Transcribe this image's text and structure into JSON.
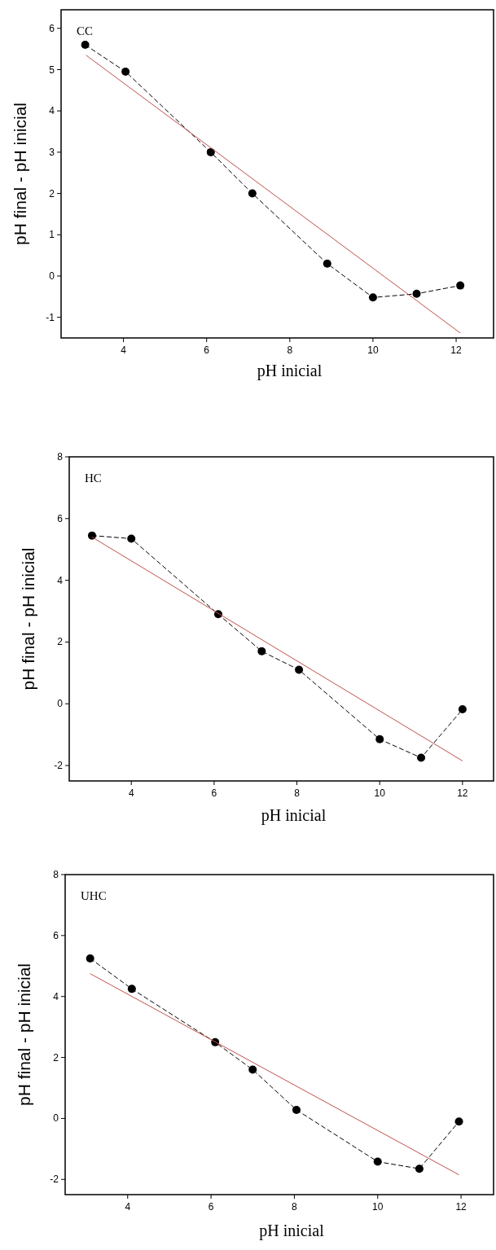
{
  "chart_data": [
    {
      "type": "line",
      "xlabel": "pH inicial",
      "ylabel": "pH final - pH inicial",
      "annotations": [
        "CC"
      ],
      "xlim": [
        2.5,
        12.9
      ],
      "xticks": [
        4,
        6,
        8,
        10,
        12
      ],
      "ylim": [
        -1.5,
        6.45
      ],
      "yticks": [
        -1,
        0,
        1,
        2,
        3,
        4,
        5,
        6
      ],
      "grid": false,
      "series": [
        {
          "color": "#000000",
          "marker": "circle",
          "line_style": "dashed",
          "x": [
            3.08,
            4.05,
            6.1,
            7.1,
            8.9,
            10.0,
            11.05,
            12.1
          ],
          "values": [
            5.6,
            4.95,
            3.0,
            2.0,
            0.3,
            -0.52,
            -0.43,
            -0.23
          ]
        },
        {
          "color": "#c0504d",
          "marker": "none",
          "line_style": "solid",
          "x": [
            3.1,
            12.1
          ],
          "values": [
            5.35,
            -1.38
          ]
        }
      ]
    },
    {
      "type": "line",
      "xlabel": "pH inicial",
      "ylabel": "pH final - pH inicial",
      "annotations": [
        "HC"
      ],
      "xlim": [
        2.5,
        12.75
      ],
      "xticks": [
        4,
        6,
        8,
        10,
        12
      ],
      "ylim": [
        -2.5,
        8
      ],
      "yticks": [
        -2,
        0,
        2,
        4,
        6,
        8
      ],
      "grid": false,
      "series": [
        {
          "color": "#000000",
          "marker": "circle",
          "line_style": "dashed",
          "x": [
            3.05,
            4.0,
            6.1,
            7.15,
            8.05,
            10.0,
            11.0,
            12.0
          ],
          "values": [
            5.45,
            5.35,
            2.9,
            1.7,
            1.1,
            -1.15,
            -1.75,
            -0.18
          ]
        },
        {
          "color": "#c0504d",
          "marker": "none",
          "line_style": "solid",
          "x": [
            3.05,
            12.0
          ],
          "values": [
            5.4,
            -1.85
          ]
        }
      ]
    },
    {
      "type": "line",
      "xlabel": "pH inicial",
      "ylabel": "pH final - pH inicial",
      "annotations": [
        "UHC"
      ],
      "xlim": [
        2.5,
        12.78
      ],
      "xticks": [
        4,
        6,
        8,
        10,
        12
      ],
      "ylim": [
        -2.5,
        8
      ],
      "yticks": [
        -2,
        0,
        2,
        4,
        6,
        8
      ],
      "grid": false,
      "series": [
        {
          "color": "#000000",
          "marker": "circle",
          "line_style": "dashed",
          "x": [
            3.1,
            4.1,
            6.1,
            7.0,
            8.05,
            10.0,
            11.0,
            11.95
          ],
          "values": [
            5.25,
            4.25,
            2.5,
            1.6,
            0.28,
            -1.42,
            -1.65,
            -0.1
          ]
        },
        {
          "color": "#c0504d",
          "marker": "none",
          "line_style": "solid",
          "x": [
            3.1,
            11.95
          ],
          "values": [
            4.75,
            -1.85
          ]
        }
      ]
    }
  ]
}
